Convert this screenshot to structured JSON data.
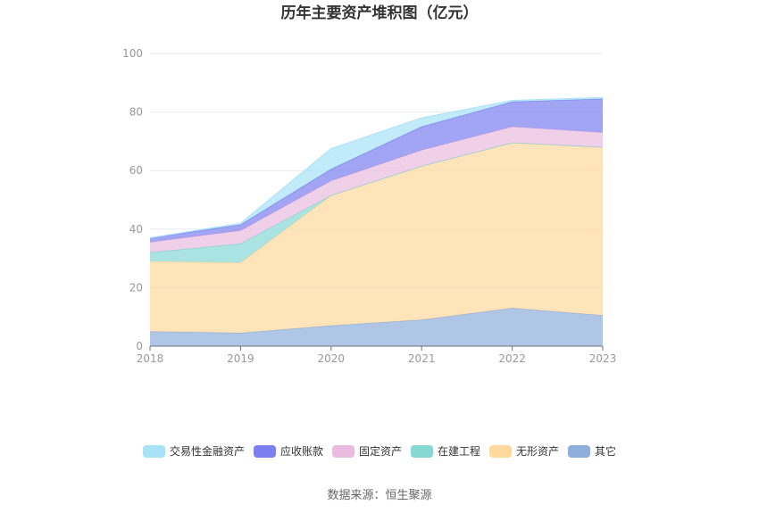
{
  "chart_data": {
    "type": "area",
    "stacked": true,
    "title": "历年主要资产堆积图（亿元）",
    "categories": [
      "2018",
      "2019",
      "2020",
      "2021",
      "2022",
      "2023"
    ],
    "ylim": [
      0,
      100
    ],
    "yticks": [
      "0",
      "20",
      "40",
      "60",
      "80",
      "100"
    ],
    "grid": true,
    "legend_position": "bottom",
    "series": [
      {
        "name": "其它",
        "color": "#8eaedc",
        "values": [
          5.0,
          4.5,
          7.0,
          9.0,
          13.0,
          10.5
        ]
      },
      {
        "name": "无形资产",
        "color": "#ffd99b",
        "values": [
          24.0,
          24.0,
          44.5,
          52.5,
          56.5,
          57.5
        ]
      },
      {
        "name": "在建工程",
        "color": "#86d8d5",
        "values": [
          3.0,
          6.5,
          0.0,
          0.0,
          0.0,
          0.0
        ]
      },
      {
        "name": "固定资产",
        "color": "#e9bcdf",
        "values": [
          3.5,
          4.5,
          5.0,
          5.5,
          5.5,
          5.0
        ]
      },
      {
        "name": "应收账款",
        "color": "#7b7ff0",
        "values": [
          1.5,
          2.0,
          4.0,
          8.0,
          8.5,
          11.5
        ]
      },
      {
        "name": "交易性金融资产",
        "color": "#a8e2f8",
        "values": [
          0.0,
          0.5,
          7.0,
          3.0,
          0.5,
          0.5
        ]
      }
    ]
  },
  "legend_order": [
    "交易性金融资产",
    "应收账款",
    "固定资产",
    "在建工程",
    "无形资产",
    "其它"
  ],
  "source_text": "数据来源：恒生聚源"
}
